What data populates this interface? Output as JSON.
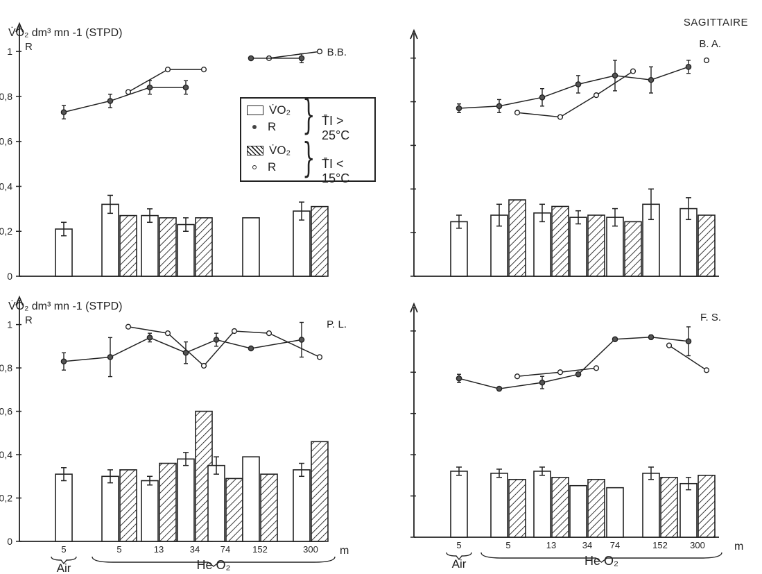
{
  "page_title": "SAGITTAIRE",
  "legend": {
    "row1_symbol": "V̇O₂",
    "row2_symbol": "R",
    "row3_symbol": "V̇O₂",
    "row4_symbol": "R",
    "condition_warm": "T̄I > 25°C",
    "condition_cold": "T̄I < 15°C"
  },
  "y_axis_label": "V̇O₂ dm³ mn -1 (STPD)",
  "y_axis_label_R": "R",
  "x_unit": "m",
  "x_groups": [
    "Air",
    "He O₂"
  ],
  "chart_data": [
    {
      "type": "bar",
      "panel": "B.B.",
      "categories": [
        "5",
        "5",
        "13",
        "34",
        "74",
        "152",
        "300"
      ],
      "ylim": [
        0,
        1.05
      ],
      "yticks": [
        "0",
        "0,2",
        "0,4",
        "0,6",
        "0,8",
        "1"
      ],
      "bars_warm": [
        0.21,
        0.32,
        0.27,
        0.23,
        null,
        0.26,
        0.29
      ],
      "bars_cold": [
        null,
        0.27,
        0.26,
        0.26,
        null,
        null,
        0.31
      ],
      "bars_warm_err": [
        0.03,
        0.04,
        0.03,
        0.03,
        null,
        null,
        0.04
      ],
      "R_warm": [
        0.73,
        0.78,
        0.84,
        0.84,
        null,
        0.97,
        0.97
      ],
      "R_cold": [
        null,
        0.82,
        0.92,
        0.92,
        null,
        0.97,
        1.0
      ],
      "R_warm_err": [
        0.03,
        0.03,
        0.03,
        0.03,
        null,
        null,
        0.02
      ]
    },
    {
      "type": "bar",
      "panel": "B. A.",
      "categories": [
        "5",
        "5",
        "13",
        "34",
        "74",
        "152",
        "300"
      ],
      "ylim": [
        0,
        1.05
      ],
      "bars_warm": [
        0.25,
        0.28,
        0.29,
        0.27,
        0.27,
        0.33,
        0.31
      ],
      "bars_cold": [
        null,
        0.35,
        0.32,
        0.28,
        0.25,
        null,
        0.28
      ],
      "bars_warm_err": [
        0.03,
        0.05,
        0.04,
        0.03,
        0.04,
        0.07,
        0.05
      ],
      "R_warm": [
        0.77,
        0.78,
        0.82,
        0.88,
        0.92,
        0.9,
        0.96
      ],
      "R_cold": [
        null,
        0.75,
        0.73,
        0.83,
        0.94,
        null,
        0.99
      ],
      "R_warm_err": [
        0.02,
        0.03,
        0.04,
        0.04,
        0.07,
        0.06,
        0.03
      ]
    },
    {
      "type": "bar",
      "panel": "P. L.",
      "categories": [
        "5",
        "5",
        "13",
        "34",
        "74",
        "152",
        "300"
      ],
      "ylim": [
        0,
        1.05
      ],
      "yticks": [
        "0",
        "0,2",
        "0,4",
        "0,6",
        "0,8",
        "1"
      ],
      "bars_warm": [
        0.31,
        0.3,
        0.28,
        0.38,
        0.35,
        0.39,
        0.33
      ],
      "bars_cold": [
        null,
        0.33,
        0.36,
        0.6,
        0.29,
        0.31,
        0.46
      ],
      "bars_warm_err": [
        0.03,
        0.03,
        0.02,
        0.03,
        0.04,
        null,
        0.03
      ],
      "R_warm": [
        0.83,
        0.85,
        0.94,
        0.87,
        0.93,
        0.89,
        0.93
      ],
      "R_cold": [
        null,
        0.99,
        0.96,
        0.81,
        0.97,
        0.96,
        0.85
      ],
      "R_warm_err": [
        0.04,
        0.09,
        0.02,
        0.05,
        0.03,
        null,
        0.08
      ]
    },
    {
      "type": "bar",
      "panel": "F. S.",
      "categories": [
        "5",
        "5",
        "13",
        "34",
        "74",
        "152",
        "300"
      ],
      "ylim": [
        0,
        1.05
      ],
      "bars_warm": [
        0.32,
        0.31,
        0.32,
        0.25,
        0.24,
        0.31,
        0.26
      ],
      "bars_cold": [
        null,
        0.28,
        0.29,
        0.28,
        null,
        0.29,
        0.3
      ],
      "bars_warm_err": [
        0.02,
        0.02,
        0.02,
        null,
        null,
        0.03,
        0.03
      ],
      "R_warm": [
        0.77,
        0.72,
        0.75,
        0.79,
        0.96,
        0.97,
        0.95
      ],
      "R_cold": [
        null,
        0.78,
        0.8,
        0.82,
        null,
        0.93,
        0.81
      ],
      "R_warm_err": [
        0.02,
        null,
        0.03,
        null,
        null,
        0.01,
        0.07
      ]
    }
  ]
}
